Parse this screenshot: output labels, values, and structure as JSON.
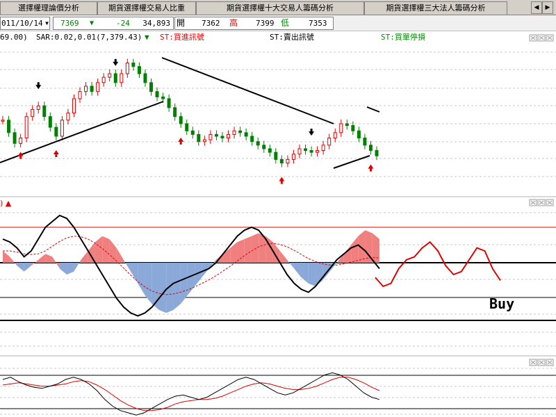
{
  "tabs": [
    "選擇權理論價分析",
    "期貨選擇權交易人比重",
    "期貨選擇權十大交易人籌碼分析",
    "期貨選擇權三大法人籌碼分析"
  ],
  "nav": {
    "prev": "◀",
    "next": "▶"
  },
  "quote": {
    "date": "011/10/14",
    "last": "7369",
    "change_arrow": "▼",
    "change": "-24",
    "volume": "34,893",
    "open_label": "開",
    "open": "7362",
    "high_label": "高",
    "high": "7399",
    "low_label": "低",
    "low": "7353"
  },
  "legend": {
    "ma": "69.00)",
    "sar": "SAR:0.02,0.01(7,379.43)",
    "sar_arrow": "▼",
    "buy_signal": "ST:買進訊號",
    "sell_signal": "ST:賣出訊號",
    "stop_loss": "ST:買單停損"
  },
  "panel2_tag": ") ▲",
  "annotation": "Buy",
  "colors": {
    "up": "#e00000",
    "down": "#008000",
    "pos_fill": "#f08080",
    "neg_fill": "#8aa8d8",
    "forecast": "#e00000"
  },
  "chart_data": [
    {
      "type": "candlestick",
      "close_range": [
        7100,
        7800
      ],
      "closes": [
        7400,
        7330,
        7270,
        7300,
        7420,
        7460,
        7480,
        7420,
        7360,
        7310,
        7400,
        7440,
        7520,
        7560,
        7590,
        7560,
        7610,
        7640,
        7660,
        7610,
        7660,
        7720,
        7700,
        7660,
        7610,
        7560,
        7530,
        7520,
        7470,
        7420,
        7380,
        7340,
        7320,
        7280,
        7290,
        7320,
        7310,
        7300,
        7320,
        7340,
        7330,
        7310,
        7280,
        7260,
        7240,
        7220,
        7180,
        7160,
        7180,
        7210,
        7240,
        7230,
        7220,
        7230,
        7260,
        7300,
        7330,
        7380,
        7370,
        7340,
        7300,
        7260,
        7230,
        7200
      ],
      "signals": {
        "buy": [
          3,
          9,
          30,
          47,
          62
        ],
        "sell": [
          6,
          19,
          52
        ]
      },
      "forecast": false
    },
    {
      "type": "oscillator",
      "levels": [
        -40,
        0,
        60
      ],
      "forecast_points": [
        -25,
        -40,
        -35,
        -10,
        5,
        10,
        25,
        35,
        20,
        -5,
        -20,
        -15,
        5,
        25,
        20,
        -10,
        -30
      ],
      "histogram": [
        20,
        10,
        -5,
        -15,
        -5,
        5,
        15,
        10,
        -10,
        -20,
        -15,
        5,
        20,
        35,
        45,
        40,
        25,
        5,
        -15,
        -35,
        -55,
        -70,
        -80,
        -85,
        -80,
        -70,
        -55,
        -40,
        -25,
        -10,
        5,
        15,
        25,
        35,
        40,
        45,
        50,
        45,
        35,
        20,
        5,
        -10,
        -25,
        -35,
        -40,
        -30,
        -15,
        0,
        15,
        30,
        45,
        55,
        50,
        40
      ],
      "fast_line": [
        40,
        35,
        25,
        10,
        20,
        40,
        60,
        70,
        80,
        75,
        60,
        40,
        20,
        0,
        -20,
        -40,
        -60,
        -75,
        -85,
        -90,
        -85,
        -75,
        -60,
        -45,
        -35,
        -30,
        -25,
        -20,
        -15,
        -10,
        0,
        15,
        30,
        45,
        55,
        60,
        55,
        40,
        20,
        0,
        -20,
        -35,
        -45,
        -50,
        -40,
        -25,
        -10,
        5,
        15,
        25,
        30,
        20,
        5,
        -10
      ],
      "slow_line": [
        20,
        20,
        18,
        15,
        14,
        15,
        20,
        28,
        36,
        42,
        45,
        44,
        40,
        33,
        24,
        14,
        3,
        -9,
        -21,
        -32,
        -41,
        -48,
        -52,
        -54,
        -53,
        -50,
        -46,
        -41,
        -35,
        -29,
        -22,
        -14,
        -6,
        3,
        12,
        20,
        27,
        31,
        33,
        31,
        27,
        21,
        14,
        7,
        2,
        -2,
        -4,
        -4,
        -2,
        1,
        4,
        7,
        9,
        8
      ]
    },
    {
      "type": "line",
      "series_black": [
        10,
        12,
        8,
        5,
        3,
        2,
        4,
        6,
        10,
        12,
        10,
        6,
        0,
        -8,
        -14,
        -18,
        -20,
        -22,
        -20,
        -16,
        -12,
        -8,
        -5,
        -4,
        -6,
        -8,
        -6,
        -2,
        2,
        6,
        10,
        12,
        10,
        6,
        2,
        -2,
        -4,
        -2,
        2,
        6,
        10,
        14,
        16,
        14,
        10,
        4,
        -2,
        -6,
        -8
      ],
      "series_red": [
        5,
        6,
        7,
        6,
        5,
        4,
        4,
        5,
        6,
        8,
        9,
        8,
        5,
        1,
        -4,
        -9,
        -13,
        -16,
        -18,
        -18,
        -17,
        -15,
        -12,
        -10,
        -9,
        -8,
        -8,
        -7,
        -5,
        -2,
        1,
        4,
        6,
        7,
        6,
        4,
        2,
        1,
        1,
        2,
        4,
        7,
        10,
        12,
        12,
        10,
        7,
        3,
        0
      ]
    }
  ]
}
